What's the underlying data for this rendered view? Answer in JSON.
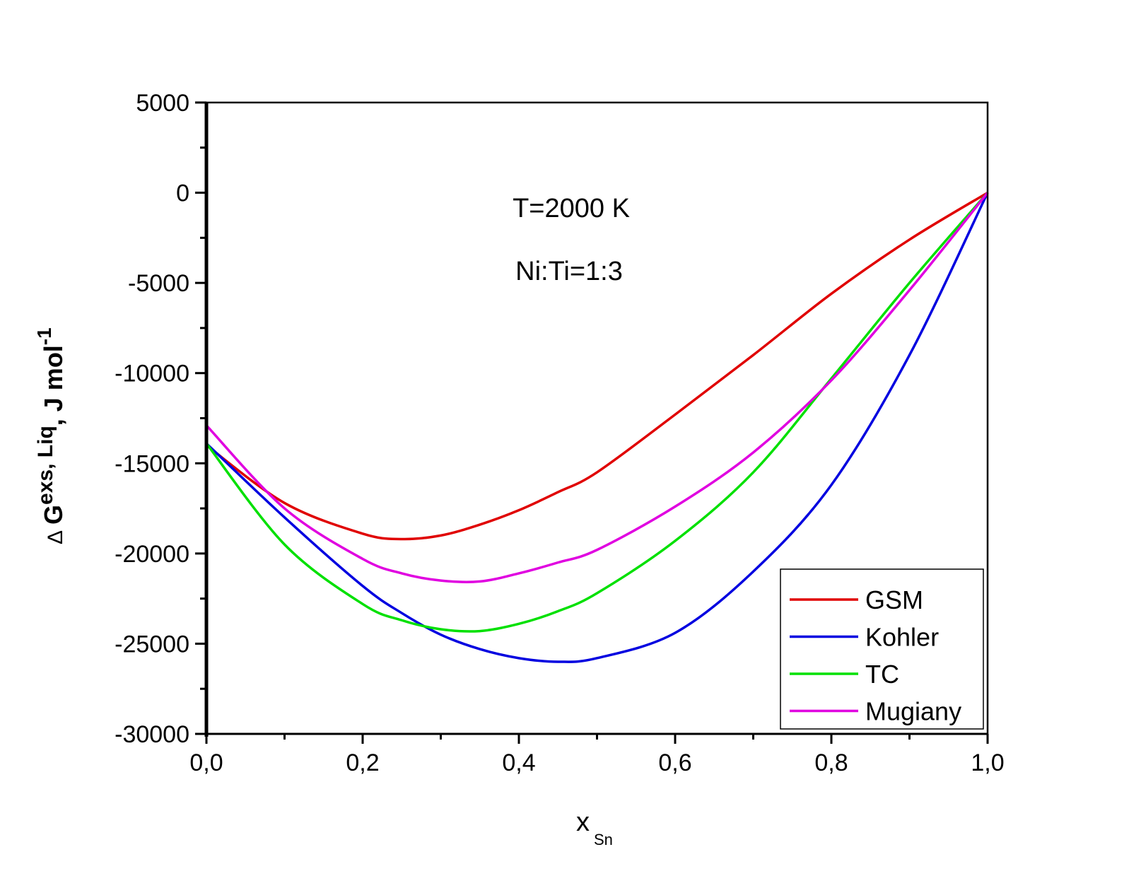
{
  "chart_data": {
    "type": "line",
    "title": "",
    "xlabel": "x",
    "xlabel_sub": "Sn",
    "ylabel_parts": {
      "delta": "Δ",
      "g": "G",
      "sup": "exs, Liq",
      "unit": ", J mol",
      "unit_sup": "-1"
    },
    "xlim": [
      0,
      1
    ],
    "ylim": [
      -30000,
      5000
    ],
    "xticks": [
      0,
      0.2,
      0.4,
      0.6,
      0.8,
      1.0
    ],
    "xtick_labels": [
      "0,0",
      "0,2",
      "0,4",
      "0,6",
      "0,8",
      "1,0"
    ],
    "yticks": [
      5000,
      0,
      -5000,
      -10000,
      -15000,
      -20000,
      -25000,
      -30000
    ],
    "ytick_labels": [
      "5000",
      "0",
      "-5000",
      "-10000",
      "-15000",
      "-20000",
      "-25000",
      "-30000"
    ],
    "annotations": [
      "T=2000 K",
      "Ni:Ti=1:3"
    ],
    "legend_position": "bottom-right",
    "grid": false,
    "x": [
      0,
      0.1,
      0.2,
      0.25,
      0.3,
      0.35,
      0.4,
      0.45,
      0.5,
      0.6,
      0.7,
      0.8,
      0.9,
      1.0
    ],
    "series": [
      {
        "name": "GSM",
        "color": "#e00000",
        "values": [
          -14000,
          -17200,
          -18900,
          -19200,
          -19000,
          -18400,
          -17600,
          -16600,
          -15500,
          -12300,
          -9000,
          -5600,
          -2600,
          0
        ]
      },
      {
        "name": "Kohler",
        "color": "#0000e0",
        "values": [
          -13900,
          -18000,
          -21800,
          -23300,
          -24500,
          -25300,
          -25800,
          -26000,
          -25800,
          -24400,
          -21000,
          -16200,
          -9000,
          0
        ]
      },
      {
        "name": "TC",
        "color": "#00e000",
        "values": [
          -13900,
          -19500,
          -22800,
          -23700,
          -24200,
          -24300,
          -23900,
          -23200,
          -22200,
          -19300,
          -15500,
          -10300,
          -5000,
          0
        ]
      },
      {
        "name": "Mugiany",
        "color": "#e000e0",
        "values": [
          -12900,
          -17500,
          -20300,
          -21100,
          -21500,
          -21550,
          -21100,
          -20500,
          -19800,
          -17400,
          -14400,
          -10400,
          -5400,
          0
        ]
      }
    ]
  }
}
